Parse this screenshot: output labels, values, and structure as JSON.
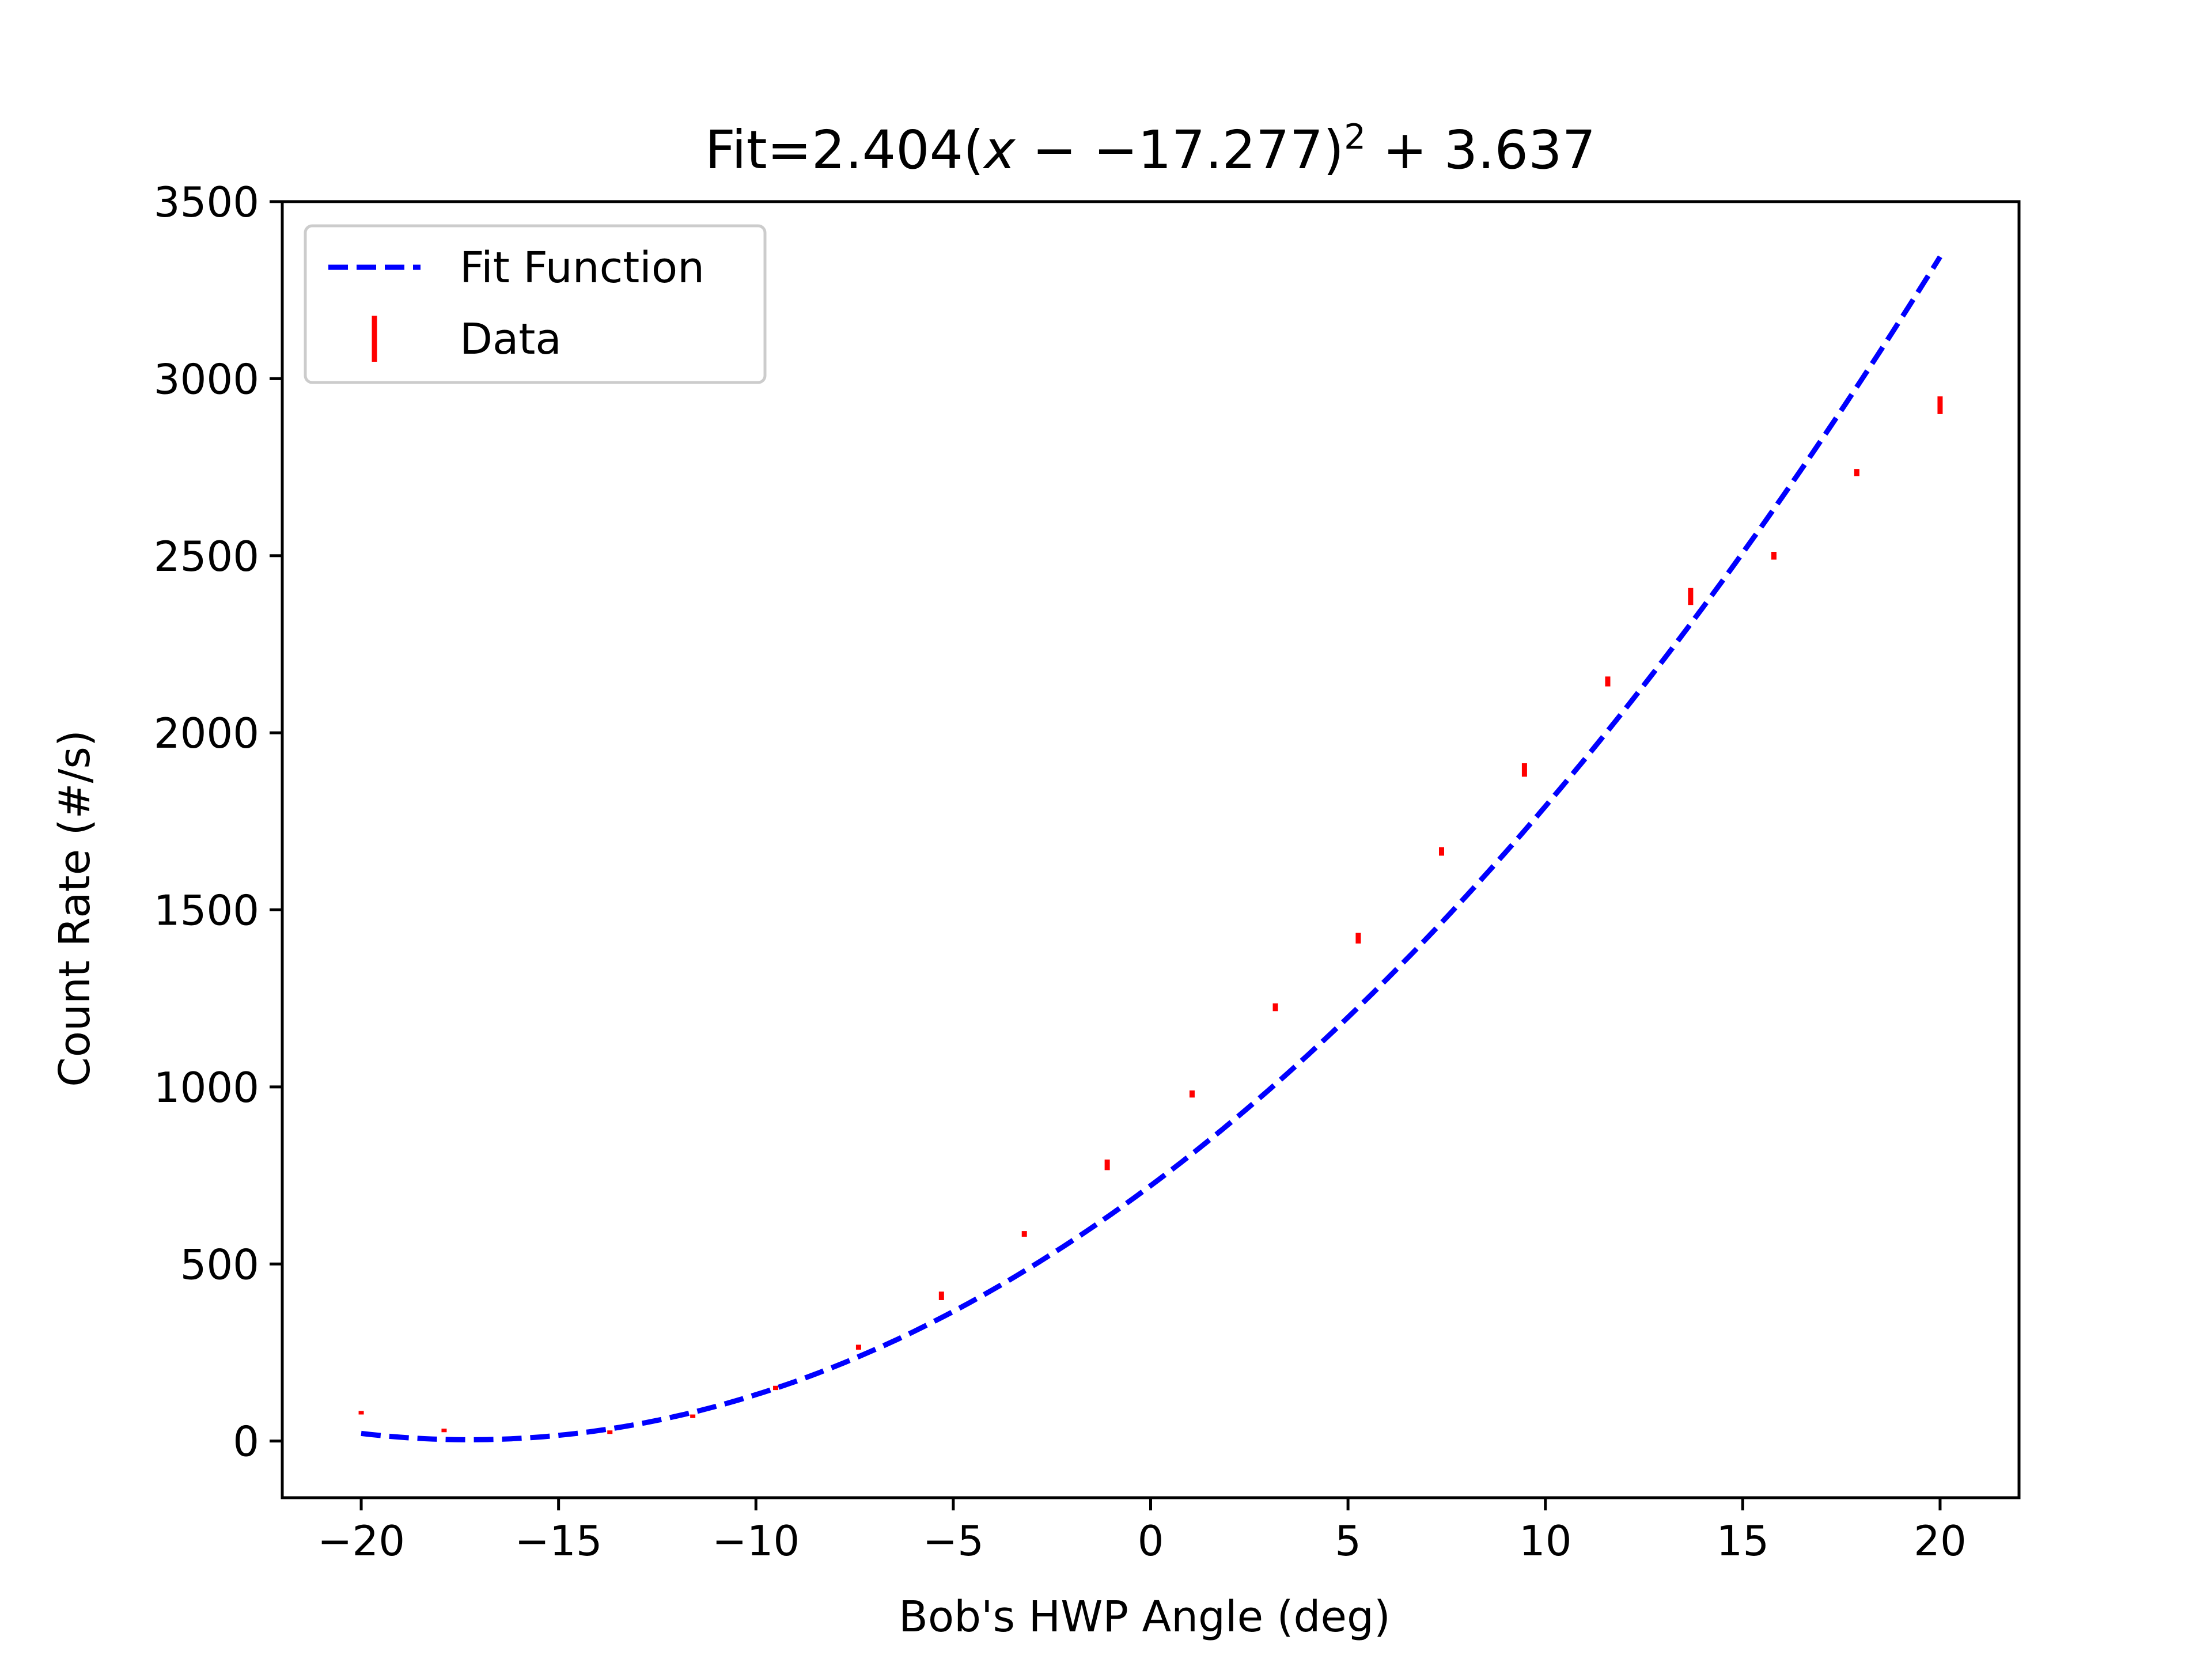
{
  "chart_data": {
    "type": "scatter",
    "title_parts": {
      "prefix": "Fit=2.404(",
      "var": "x",
      "middle": " − −17.277)",
      "exp": "2",
      "suffix": " + 3.637"
    },
    "xlabel": "Bob's HWP Angle (deg)",
    "ylabel": "Count Rate (#/s)",
    "xlim": [
      -22,
      22
    ],
    "ylim": [
      -160,
      3500
    ],
    "xticks": [
      -20,
      -15,
      -10,
      -5,
      0,
      5,
      10,
      15,
      20
    ],
    "xtick_labels": [
      "−20",
      "−15",
      "−10",
      "−5",
      "0",
      "5",
      "10",
      "15",
      "20"
    ],
    "yticks": [
      0,
      500,
      1000,
      1500,
      2000,
      2500,
      3000,
      3500
    ],
    "ytick_labels": [
      "0",
      "500",
      "1000",
      "1500",
      "2000",
      "2500",
      "3000",
      "3500"
    ],
    "grid": false,
    "legend": {
      "position": "top-left",
      "entries": [
        {
          "label": "Fit Function",
          "style": "dashed-line",
          "color": "#0000ff"
        },
        {
          "label": "Data",
          "style": "errorbar",
          "color": "#ff0000"
        }
      ]
    },
    "fit": {
      "a": 2.404,
      "h": -17.277,
      "k": 3.637,
      "x_range": [
        -20,
        20
      ],
      "color": "#0000ff"
    },
    "series": [
      {
        "name": "Data",
        "color": "#ff0000",
        "x": [
          -20.0,
          -17.9,
          -13.7,
          -11.6,
          -9.5,
          -7.4,
          -5.3,
          -3.2,
          -1.1,
          1.05,
          3.16,
          5.26,
          7.37,
          9.47,
          11.58,
          13.68,
          15.79,
          17.89,
          20.0
        ],
        "y": [
          80,
          30,
          25,
          70,
          150,
          265,
          410,
          585,
          780,
          980,
          1225,
          1420,
          1665,
          1895,
          2145,
          2385,
          2500,
          2735,
          2925
        ],
        "yerr": [
          4,
          3,
          3,
          5,
          6,
          7,
          12,
          8,
          15,
          10,
          11,
          15,
          12,
          19,
          14,
          24,
          11,
          10,
          25
        ]
      }
    ]
  }
}
